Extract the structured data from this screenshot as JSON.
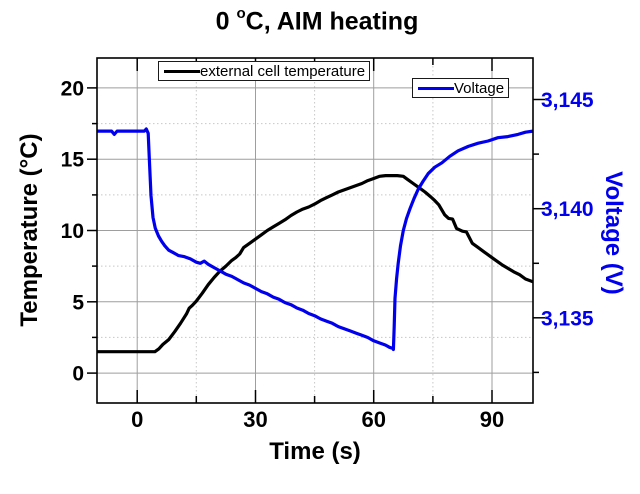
{
  "chart_data": {
    "type": "line",
    "title": "0 °C, AIM heating",
    "title_parts": {
      "prefix": "0 ",
      "sup": "o",
      "suffix": "C, AIM heating"
    },
    "xlabel": "Time (s)",
    "ylabel_left": "Temperature (°C)",
    "ylabel_right": "Voltage (V)",
    "xlim": [
      -10.2,
      100.4
    ],
    "ylim_left": [
      -2.1,
      22.1
    ],
    "ylim_right": [
      3131.1,
      3146.9
    ],
    "grid": {
      "major_style": "solid",
      "minor_style": "dotted",
      "shown": true
    },
    "legend_position": "inside-top",
    "x_ticks": {
      "major": [
        0,
        30,
        60,
        90
      ],
      "minor": [
        15,
        45,
        75
      ]
    },
    "y_left_ticks": {
      "major": [
        0,
        5,
        10,
        15,
        20
      ],
      "minor": [
        2.5,
        7.5,
        12.5,
        17.5
      ]
    },
    "y_right_ticks": {
      "major": [
        {
          "value": 3135,
          "label": "3,135"
        },
        {
          "value": 3140,
          "label": "3,140"
        },
        {
          "value": 3145,
          "label": "3,145"
        }
      ],
      "minor": [
        3132.5,
        3137.5,
        3142.5
      ]
    },
    "colors": {
      "temperature": "#000000",
      "voltage": "#0000ee",
      "grid_major": "#9e9e9e",
      "grid_minor": "#c8c8c8",
      "frame": "#000000"
    },
    "legend": [
      {
        "label": "external cell temperature",
        "series": "temperature"
      },
      {
        "label": "Voltage",
        "series": "voltage"
      }
    ],
    "series": [
      {
        "name": "external cell temperature",
        "key": "temperature-curve",
        "axis": "left",
        "color": "#000000",
        "x": [
          -10.2,
          0,
          4.5,
          5.5,
          6.5,
          8,
          9.5,
          11,
          12.5,
          13.2,
          14,
          15,
          16.5,
          18,
          19.5,
          21,
          22.5,
          24,
          25,
          26,
          27,
          28.5,
          30,
          31.5,
          33,
          34.5,
          36,
          37.5,
          39,
          40.5,
          42,
          43.5,
          45,
          46.5,
          48,
          49.5,
          51,
          52.5,
          54,
          55.5,
          57,
          58.5,
          60,
          61.5,
          63,
          64.5,
          66,
          67.5,
          68.5,
          70,
          71.5,
          73,
          74.5,
          75.5,
          76.5,
          78,
          79,
          80,
          81,
          82.5,
          83.5,
          85,
          86.5,
          88,
          89.5,
          91,
          92.5,
          94,
          95.5,
          97,
          98.5,
          100.4
        ],
        "y": [
          1.5,
          1.5,
          1.5,
          1.7,
          2.0,
          2.35,
          2.9,
          3.5,
          4.15,
          4.55,
          4.75,
          5.05,
          5.6,
          6.2,
          6.7,
          7.15,
          7.5,
          7.9,
          8.1,
          8.35,
          8.8,
          9.1,
          9.4,
          9.7,
          10.0,
          10.25,
          10.5,
          10.75,
          11.05,
          11.3,
          11.5,
          11.65,
          11.85,
          12.1,
          12.3,
          12.5,
          12.7,
          12.85,
          13.0,
          13.15,
          13.3,
          13.5,
          13.65,
          13.8,
          13.85,
          13.85,
          13.85,
          13.8,
          13.6,
          13.3,
          13.0,
          12.7,
          12.35,
          12.1,
          11.8,
          11.1,
          10.85,
          10.8,
          10.15,
          9.95,
          9.9,
          9.1,
          8.8,
          8.5,
          8.2,
          7.9,
          7.6,
          7.35,
          7.1,
          6.9,
          6.6,
          6.4
        ]
      },
      {
        "name": "Voltage",
        "key": "voltage-curve",
        "axis": "right",
        "color": "#0000ee",
        "x": [
          -10.2,
          -6.5,
          -5.8,
          -5.1,
          0,
          1.8,
          2.3,
          2.8,
          3.1,
          3.5,
          4.0,
          4.6,
          5.4,
          6.2,
          7,
          8,
          9,
          10.5,
          12,
          13.5,
          15,
          16,
          17,
          18,
          19.5,
          21,
          22.5,
          24,
          25.5,
          27,
          28.5,
          30,
          31.5,
          33,
          34.5,
          36,
          37.5,
          39,
          40.5,
          42,
          43.5,
          45,
          46.5,
          48,
          49.5,
          51,
          52.5,
          54,
          55.5,
          57,
          58.5,
          60,
          61.5,
          63,
          64,
          64.8,
          65.0,
          65.2,
          65.4,
          65.8,
          66.2,
          66.8,
          67.5,
          68.3,
          69.2,
          70.2,
          71.3,
          72.5,
          73.8,
          75.5,
          77.3,
          79.3,
          81.4,
          84,
          86.5,
          89,
          91.5,
          94,
          96.6,
          98.5,
          100.4
        ],
        "y": [
          3143.55,
          3143.55,
          3143.4,
          3143.55,
          3143.55,
          3143.55,
          3143.65,
          3143.45,
          3142.2,
          3140.6,
          3139.6,
          3139.1,
          3138.75,
          3138.5,
          3138.3,
          3138.1,
          3138.0,
          3137.85,
          3137.8,
          3137.7,
          3137.55,
          3137.5,
          3137.6,
          3137.45,
          3137.3,
          3137.15,
          3137.0,
          3136.9,
          3136.75,
          3136.6,
          3136.5,
          3136.35,
          3136.2,
          3136.1,
          3135.95,
          3135.85,
          3135.7,
          3135.6,
          3135.45,
          3135.35,
          3135.2,
          3135.1,
          3134.95,
          3134.85,
          3134.75,
          3134.6,
          3134.5,
          3134.4,
          3134.3,
          3134.2,
          3134.1,
          3133.95,
          3133.85,
          3133.75,
          3133.65,
          3133.6,
          3133.55,
          3134.6,
          3135.9,
          3136.8,
          3137.5,
          3138.3,
          3139.0,
          3139.55,
          3140.0,
          3140.45,
          3140.9,
          3141.25,
          3141.6,
          3141.9,
          3142.1,
          3142.4,
          3142.65,
          3142.85,
          3143.0,
          3143.1,
          3143.25,
          3143.3,
          3143.4,
          3143.5,
          3143.55
        ]
      }
    ]
  }
}
